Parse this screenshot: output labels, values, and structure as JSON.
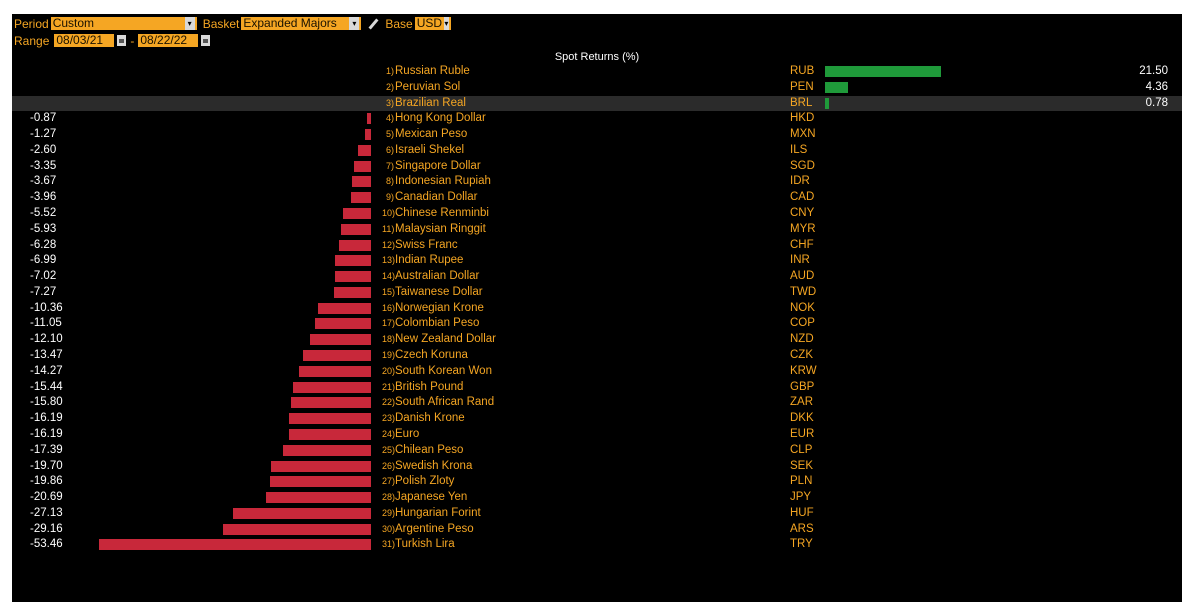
{
  "controls": {
    "period_label": "Period",
    "period_value": "Custom",
    "basket_label": "Basket",
    "basket_value": "Expanded Majors",
    "base_label": "Base",
    "base_value": "USD",
    "range_label": "Range",
    "range_start": "08/03/21",
    "range_sep": "-",
    "range_end": "08/22/22"
  },
  "colors": {
    "negative": "#c8283a",
    "positive": "#1f9a3a",
    "accent": "#f5a623"
  },
  "chart_data": {
    "type": "bar",
    "title": "Spot Returns (%)",
    "xlabel": "",
    "ylabel": "",
    "categories": [
      "Russian Ruble",
      "Peruvian Sol",
      "Brazilian Real",
      "Hong Kong Dollar",
      "Mexican Peso",
      "Israeli Shekel",
      "Singapore Dollar",
      "Indonesian Rupiah",
      "Canadian Dollar",
      "Chinese Renminbi",
      "Malaysian Ringgit",
      "Swiss Franc",
      "Indian Rupee",
      "Australian Dollar",
      "Taiwanese Dollar",
      "Norwegian Krone",
      "Colombian Peso",
      "New Zealand Dollar",
      "Czech Koruna",
      "South Korean Won",
      "British Pound",
      "South African Rand",
      "Danish Krone",
      "Euro",
      "Chilean Peso",
      "Swedish Krona",
      "Polish Zloty",
      "Japanese Yen",
      "Hungarian Forint",
      "Argentine Peso",
      "Turkish Lira"
    ],
    "codes": [
      "RUB",
      "PEN",
      "BRL",
      "HKD",
      "MXN",
      "ILS",
      "SGD",
      "IDR",
      "CAD",
      "CNY",
      "MYR",
      "CHF",
      "INR",
      "AUD",
      "TWD",
      "NOK",
      "COP",
      "NZD",
      "CZK",
      "KRW",
      "GBP",
      "ZAR",
      "DKK",
      "EUR",
      "CLP",
      "SEK",
      "PLN",
      "JPY",
      "HUF",
      "ARS",
      "TRY"
    ],
    "ranks": [
      "1)",
      "2)",
      "3)",
      "4)",
      "5)",
      "6)",
      "7)",
      "8)",
      "9)",
      "10)",
      "11)",
      "12)",
      "13)",
      "14)",
      "15)",
      "16)",
      "17)",
      "18)",
      "19)",
      "20)",
      "21)",
      "22)",
      "23)",
      "24)",
      "25)",
      "26)",
      "27)",
      "28)",
      "29)",
      "30)",
      "31)"
    ],
    "values": [
      21.5,
      4.36,
      0.78,
      -0.87,
      -1.27,
      -2.6,
      -3.35,
      -3.67,
      -3.96,
      -5.52,
      -5.93,
      -6.28,
      -6.99,
      -7.02,
      -7.27,
      -10.36,
      -11.05,
      -12.1,
      -13.47,
      -14.27,
      -15.44,
      -15.8,
      -16.19,
      -16.19,
      -17.39,
      -19.7,
      -19.86,
      -20.69,
      -27.13,
      -29.16,
      -53.46
    ],
    "labels": [
      "21.50",
      "4.36",
      "0.78",
      "-0.87",
      "-1.27",
      "-2.60",
      "-3.35",
      "-3.67",
      "-3.96",
      "-5.52",
      "-5.93",
      "-6.28",
      "-6.99",
      "-7.02",
      "-7.27",
      "-10.36",
      "-11.05",
      "-12.10",
      "-13.47",
      "-14.27",
      "-15.44",
      "-15.80",
      "-16.19",
      "-16.19",
      "-17.39",
      "-19.70",
      "-19.86",
      "-20.69",
      "-27.13",
      "-29.16",
      "-53.46"
    ],
    "highlight_index": 2
  }
}
